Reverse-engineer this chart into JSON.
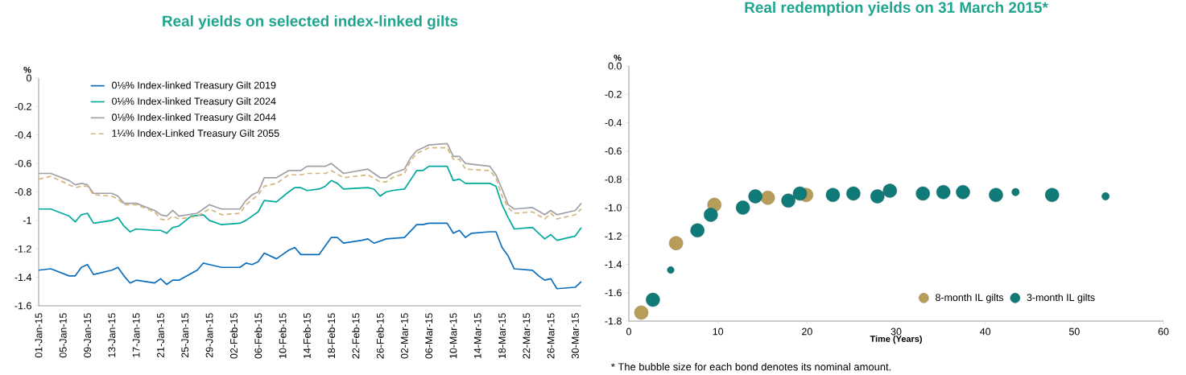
{
  "chart_data": [
    {
      "type": "line",
      "title": "Real yields on selected index-linked gilts",
      "ylabel": "%",
      "legend": "top left",
      "xlim": [
        "2015-01-01",
        "2015-03-31"
      ],
      "ylim": [
        -1.6,
        0
      ],
      "yticks": [
        0,
        -0.2,
        -0.4,
        -0.6,
        -0.8,
        -1,
        -1.2,
        -1.4,
        -1.6
      ],
      "xticks": [
        {
          "value": "2015-01-01",
          "label": "01-Jan-15"
        },
        {
          "value": "2015-01-05",
          "label": "05-Jan-15"
        },
        {
          "value": "2015-01-09",
          "label": "09-Jan-15"
        },
        {
          "value": "2015-01-13",
          "label": "13-Jan-15"
        },
        {
          "value": "2015-01-17",
          "label": "17-Jan-15"
        },
        {
          "value": "2015-01-21",
          "label": "21-Jan-15"
        },
        {
          "value": "2015-01-25",
          "label": "25-Jan-15"
        },
        {
          "value": "2015-01-29",
          "label": "29-Jan-15"
        },
        {
          "value": "2015-02-02",
          "label": "02-Feb-15"
        },
        {
          "value": "2015-02-06",
          "label": "06-Feb-15"
        },
        {
          "value": "2015-02-10",
          "label": "10-Feb-15"
        },
        {
          "value": "2015-02-14",
          "label": "14-Feb-15"
        },
        {
          "value": "2015-02-18",
          "label": "18-Feb-15"
        },
        {
          "value": "2015-02-22",
          "label": "22-Feb-15"
        },
        {
          "value": "2015-02-26",
          "label": "26-Feb-15"
        },
        {
          "value": "2015-03-02",
          "label": "02-Mar-15"
        },
        {
          "value": "2015-03-06",
          "label": "06-Mar-15"
        },
        {
          "value": "2015-03-10",
          "label": "10-Mar-15"
        },
        {
          "value": "2015-03-14",
          "label": "14-Mar-15"
        },
        {
          "value": "2015-03-18",
          "label": "18-Mar-15"
        },
        {
          "value": "2015-03-22",
          "label": "22-Mar-15"
        },
        {
          "value": "2015-03-26",
          "label": "26-Mar-15"
        },
        {
          "value": "2015-03-30",
          "label": "30-Mar-15"
        }
      ],
      "series": [
        {
          "name": "0⅛% Index-linked Treasury Gilt 2019",
          "color": "#0a6ebd",
          "x": [
            "2015-01-01",
            "2015-01-03",
            "2015-01-06",
            "2015-01-07",
            "2015-01-08",
            "2015-01-09",
            "2015-01-10",
            "2015-01-13",
            "2015-01-14",
            "2015-01-15",
            "2015-01-16",
            "2015-01-17",
            "2015-01-20",
            "2015-01-21",
            "2015-01-22",
            "2015-01-23",
            "2015-01-24",
            "2015-01-27",
            "2015-01-28",
            "2015-01-29",
            "2015-01-31",
            "2015-02-03",
            "2015-02-04",
            "2015-02-05",
            "2015-02-06",
            "2015-02-07",
            "2015-02-09",
            "2015-02-11",
            "2015-02-12",
            "2015-02-13",
            "2015-02-16",
            "2015-02-18",
            "2015-02-19",
            "2015-02-20",
            "2015-02-23",
            "2015-02-24",
            "2015-02-25",
            "2015-02-27",
            "2015-03-02",
            "2015-03-04",
            "2015-03-05",
            "2015-03-06",
            "2015-03-09",
            "2015-03-10",
            "2015-03-11",
            "2015-03-12",
            "2015-03-13",
            "2015-03-16",
            "2015-03-17",
            "2015-03-18",
            "2015-03-19",
            "2015-03-20",
            "2015-03-23",
            "2015-03-24",
            "2015-03-25",
            "2015-03-26",
            "2015-03-27",
            "2015-03-30",
            "2015-03-31"
          ],
          "values": [
            -1.35,
            -1.34,
            -1.39,
            -1.39,
            -1.33,
            -1.31,
            -1.38,
            -1.35,
            -1.33,
            -1.39,
            -1.44,
            -1.42,
            -1.44,
            -1.41,
            -1.45,
            -1.42,
            -1.42,
            -1.35,
            -1.3,
            -1.31,
            -1.33,
            -1.33,
            -1.3,
            -1.31,
            -1.29,
            -1.23,
            -1.27,
            -1.21,
            -1.19,
            -1.24,
            -1.24,
            -1.12,
            -1.12,
            -1.16,
            -1.14,
            -1.13,
            -1.16,
            -1.13,
            -1.12,
            -1.03,
            -1.03,
            -1.02,
            -1.02,
            -1.09,
            -1.07,
            -1.12,
            -1.09,
            -1.08,
            -1.08,
            -1.19,
            -1.25,
            -1.34,
            -1.35,
            -1.39,
            -1.42,
            -1.41,
            -1.48,
            -1.47,
            -1.43
          ]
        },
        {
          "name": "0⅛% Index-linked Treasury Gilt 2024",
          "color": "#00a99d",
          "x": [
            "2015-01-01",
            "2015-01-03",
            "2015-01-06",
            "2015-01-07",
            "2015-01-08",
            "2015-01-09",
            "2015-01-10",
            "2015-01-13",
            "2015-01-14",
            "2015-01-15",
            "2015-01-16",
            "2015-01-17",
            "2015-01-20",
            "2015-01-21",
            "2015-01-22",
            "2015-01-23",
            "2015-01-24",
            "2015-01-26",
            "2015-01-28",
            "2015-01-29",
            "2015-01-31",
            "2015-02-03",
            "2015-02-04",
            "2015-02-06",
            "2015-02-07",
            "2015-02-09",
            "2015-02-11",
            "2015-02-12",
            "2015-02-13",
            "2015-02-14",
            "2015-02-16",
            "2015-02-17",
            "2015-02-18",
            "2015-02-19",
            "2015-02-20",
            "2015-02-24",
            "2015-02-25",
            "2015-02-26",
            "2015-02-27",
            "2015-02-28",
            "2015-03-02",
            "2015-03-04",
            "2015-03-05",
            "2015-03-06",
            "2015-03-09",
            "2015-03-10",
            "2015-03-11",
            "2015-03-12",
            "2015-03-16",
            "2015-03-17",
            "2015-03-18",
            "2015-03-19",
            "2015-03-20",
            "2015-03-23",
            "2015-03-24",
            "2015-03-25",
            "2015-03-26",
            "2015-03-27",
            "2015-03-30",
            "2015-03-31"
          ],
          "values": [
            -0.92,
            -0.92,
            -0.97,
            -1.01,
            -0.96,
            -0.95,
            -1.02,
            -1.0,
            -0.98,
            -1.04,
            -1.08,
            -1.06,
            -1.07,
            -1.07,
            -1.09,
            -1.05,
            -1.04,
            -0.97,
            -0.96,
            -1.0,
            -1.03,
            -1.02,
            -1.0,
            -0.94,
            -0.86,
            -0.87,
            -0.8,
            -0.77,
            -0.77,
            -0.79,
            -0.78,
            -0.76,
            -0.72,
            -0.74,
            -0.78,
            -0.77,
            -0.78,
            -0.83,
            -0.8,
            -0.79,
            -0.78,
            -0.65,
            -0.65,
            -0.62,
            -0.62,
            -0.72,
            -0.71,
            -0.74,
            -0.74,
            -0.76,
            -0.89,
            -0.98,
            -1.06,
            -1.05,
            -1.09,
            -1.13,
            -1.1,
            -1.14,
            -1.11,
            -1.05
          ]
        },
        {
          "name": "0⅛% Index-linked Treasury Gilt 2044",
          "color": "#a0a0a6",
          "x": [
            "2015-01-01",
            "2015-01-03",
            "2015-01-06",
            "2015-01-07",
            "2015-01-08",
            "2015-01-09",
            "2015-01-10",
            "2015-01-13",
            "2015-01-14",
            "2015-01-15",
            "2015-01-17",
            "2015-01-20",
            "2015-01-21",
            "2015-01-22",
            "2015-01-23",
            "2015-01-24",
            "2015-01-27",
            "2015-01-28",
            "2015-01-29",
            "2015-01-31",
            "2015-02-03",
            "2015-02-04",
            "2015-02-05",
            "2015-02-06",
            "2015-02-07",
            "2015-02-09",
            "2015-02-11",
            "2015-02-13",
            "2015-02-14",
            "2015-02-17",
            "2015-02-18",
            "2015-02-20",
            "2015-02-24",
            "2015-02-25",
            "2015-02-26",
            "2015-02-27",
            "2015-02-28",
            "2015-03-02",
            "2015-03-03",
            "2015-03-04",
            "2015-03-05",
            "2015-03-06",
            "2015-03-09",
            "2015-03-10",
            "2015-03-11",
            "2015-03-12",
            "2015-03-16",
            "2015-03-17",
            "2015-03-18",
            "2015-03-19",
            "2015-03-20",
            "2015-03-23",
            "2015-03-25",
            "2015-03-26",
            "2015-03-27",
            "2015-03-30",
            "2015-03-31"
          ],
          "values": [
            -0.67,
            -0.67,
            -0.72,
            -0.75,
            -0.74,
            -0.75,
            -0.81,
            -0.81,
            -0.83,
            -0.88,
            -0.88,
            -0.93,
            -0.96,
            -0.97,
            -0.93,
            -0.97,
            -0.95,
            -0.92,
            -0.89,
            -0.92,
            -0.92,
            -0.86,
            -0.82,
            -0.8,
            -0.7,
            -0.7,
            -0.65,
            -0.65,
            -0.62,
            -0.62,
            -0.6,
            -0.67,
            -0.64,
            -0.67,
            -0.7,
            -0.7,
            -0.67,
            -0.64,
            -0.56,
            -0.51,
            -0.49,
            -0.47,
            -0.46,
            -0.55,
            -0.55,
            -0.6,
            -0.62,
            -0.68,
            -0.78,
            -0.89,
            -0.92,
            -0.91,
            -0.96,
            -0.93,
            -0.96,
            -0.93,
            -0.88
          ]
        },
        {
          "name": "1¼% Index-Linked Treasury Gilt 2055",
          "color": "#d4b57c",
          "line_style": "dashed",
          "x": [
            "2015-01-01",
            "2015-01-03",
            "2015-01-06",
            "2015-01-07",
            "2015-01-08",
            "2015-01-09",
            "2015-01-10",
            "2015-01-13",
            "2015-01-14",
            "2015-01-15",
            "2015-01-17",
            "2015-01-20",
            "2015-01-21",
            "2015-01-22",
            "2015-01-23",
            "2015-01-24",
            "2015-01-27",
            "2015-01-29",
            "2015-01-31",
            "2015-02-03",
            "2015-02-04",
            "2015-02-06",
            "2015-02-07",
            "2015-02-09",
            "2015-02-11",
            "2015-02-13",
            "2015-02-14",
            "2015-02-17",
            "2015-02-18",
            "2015-02-20",
            "2015-02-24",
            "2015-02-26",
            "2015-02-27",
            "2015-02-28",
            "2015-03-02",
            "2015-03-03",
            "2015-03-04",
            "2015-03-06",
            "2015-03-09",
            "2015-03-10",
            "2015-03-11",
            "2015-03-12",
            "2015-03-16",
            "2015-03-17",
            "2015-03-18",
            "2015-03-19",
            "2015-03-20",
            "2015-03-23",
            "2015-03-25",
            "2015-03-26",
            "2015-03-27",
            "2015-03-30",
            "2015-03-31"
          ],
          "values": [
            -0.71,
            -0.69,
            -0.75,
            -0.77,
            -0.76,
            -0.76,
            -0.82,
            -0.83,
            -0.85,
            -0.89,
            -0.89,
            -0.94,
            -0.99,
            -1.0,
            -0.97,
            -0.99,
            -0.97,
            -0.92,
            -0.96,
            -0.95,
            -0.89,
            -0.82,
            -0.76,
            -0.74,
            -0.68,
            -0.68,
            -0.67,
            -0.67,
            -0.65,
            -0.7,
            -0.68,
            -0.73,
            -0.73,
            -0.7,
            -0.67,
            -0.58,
            -0.53,
            -0.49,
            -0.49,
            -0.57,
            -0.57,
            -0.64,
            -0.65,
            -0.7,
            -0.83,
            -0.91,
            -0.95,
            -0.94,
            -0.99,
            -0.95,
            -0.99,
            -0.96,
            -0.92
          ]
        }
      ]
    },
    {
      "type": "bubble",
      "title": "Real redemption yields on 31 March 2015*",
      "ylabel": "%",
      "xlabel": "Time (Years)",
      "legend": "bottom right",
      "xlim": [
        0,
        60
      ],
      "ylim": [
        -1.8,
        0
      ],
      "xticks": [
        0,
        10,
        20,
        30,
        40,
        50,
        60
      ],
      "yticks": [
        {
          "value": 0,
          "label": "0.0"
        },
        -0.2,
        -0.4,
        -0.6,
        -0.8,
        {
          "value": -1,
          "label": "-1.0"
        },
        -1.2,
        -1.4,
        -1.6,
        -1.8
      ],
      "annotations": [
        "* The bubble size for each bond denotes its nominal amount."
      ],
      "series": [
        {
          "name": "8-month IL gilts",
          "color": "#b89d5a",
          "x": [
            1.4,
            5.3,
            9.6,
            15.6,
            19.9
          ],
          "values": [
            -1.74,
            -1.25,
            -0.98,
            -0.93,
            -0.91
          ],
          "sizes": [
            1,
            1,
            1,
            1,
            1
          ]
        },
        {
          "name": "3-month IL gilts",
          "color": "#0f7a78",
          "x": [
            2.7,
            4.7,
            7.7,
            9.2,
            12.8,
            14.2,
            17.9,
            19.2,
            22.9,
            25.2,
            27.9,
            29.3,
            33.0,
            35.3,
            37.5,
            41.2,
            43.4,
            47.5,
            53.5
          ],
          "values": [
            -1.65,
            -1.44,
            -1.16,
            -1.05,
            -1.0,
            -0.92,
            -0.95,
            -0.9,
            -0.91,
            -0.9,
            -0.92,
            -0.88,
            -0.9,
            -0.89,
            -0.89,
            -0.91,
            -0.89,
            -0.91,
            -0.92
          ],
          "sizes": [
            1,
            0.25,
            1,
            1,
            1,
            1,
            1,
            1,
            1,
            1,
            1,
            1,
            1,
            1,
            1,
            1,
            0.3,
            1,
            0.3
          ]
        }
      ]
    }
  ]
}
